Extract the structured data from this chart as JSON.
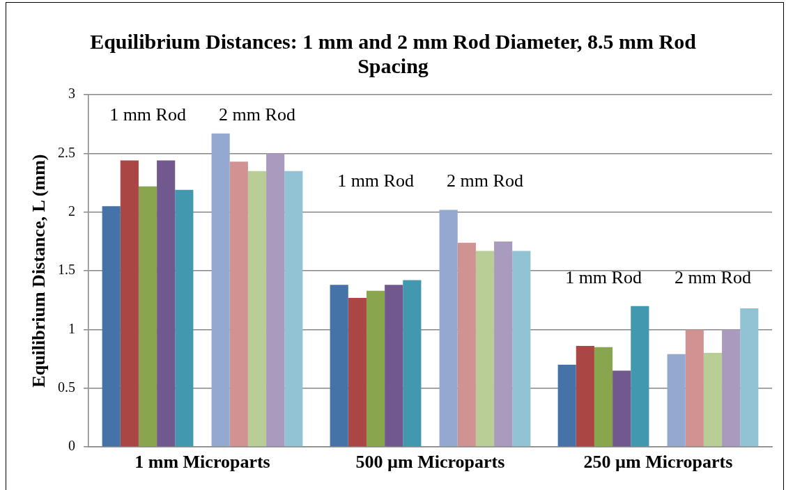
{
  "chart_data": {
    "type": "bar",
    "title": "Equilibrium Distances: 1 mm and 2 mm Rod Diameter, 8.5 mm Rod Spacing",
    "ylabel": "Equilibrium Distance, L (mm)",
    "categories": [
      "1 mm Microparts",
      "500 µm Microparts",
      "250 µm Microparts"
    ],
    "series": [
      {
        "color": "#4572a7",
        "values": [
          2.05,
          1.38,
          0.7
        ]
      },
      {
        "color": "#aa4643",
        "values": [
          2.44,
          1.27,
          0.86
        ]
      },
      {
        "color": "#89a54e",
        "values": [
          2.22,
          1.33,
          0.85
        ]
      },
      {
        "color": "#71588f",
        "values": [
          2.44,
          1.38,
          0.65
        ]
      },
      {
        "color": "#4198af",
        "values": [
          2.19,
          1.42,
          1.2
        ]
      },
      {
        "color": "#93a9cf",
        "values": [
          2.67,
          2.02,
          0.79
        ]
      },
      {
        "color": "#d19392",
        "values": [
          2.43,
          1.74,
          1.0
        ]
      },
      {
        "color": "#b9cd96",
        "values": [
          2.35,
          1.67,
          0.8
        ]
      },
      {
        "color": "#a99bbd",
        "values": [
          2.5,
          1.75,
          1.0
        ]
      },
      {
        "color": "#92c3d5",
        "values": [
          2.35,
          1.67,
          1.18
        ]
      }
    ],
    "ylim": [
      0,
      3
    ],
    "yticks": [
      0,
      0.5,
      1,
      1.5,
      2,
      2.5,
      3
    ],
    "grid": "y",
    "annotations": [
      "1 mm Rod",
      "2 mm Rod",
      "1 mm Rod",
      "2 mm Rod",
      "1 mm Rod",
      "2 mm Rod"
    ]
  }
}
